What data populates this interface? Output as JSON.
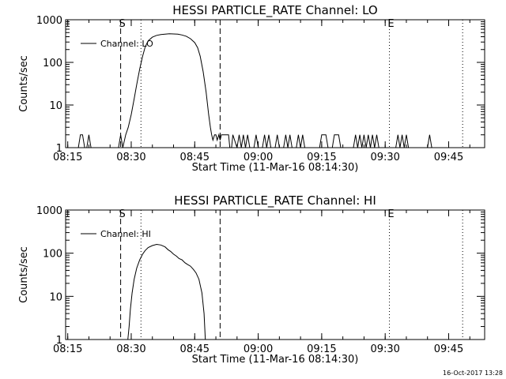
{
  "chart_data": [
    {
      "type": "line",
      "title": "HESSI PARTICLE_RATE Channel: LO",
      "xlabel": "Start Time (11-Mar-16 08:14:30)",
      "ylabel": "Counts/sec",
      "yscale": "log",
      "ylim": [
        1,
        1000
      ],
      "xlim": [
        "08:14:30",
        "09:53:30"
      ],
      "xticks": [
        "08:15",
        "08:30",
        "08:45",
        "09:00",
        "09:15",
        "09:30",
        "09:45"
      ],
      "yticks": [
        "1",
        "10",
        "100",
        "1000"
      ],
      "legend": {
        "location": "top-left",
        "entries": [
          "Channel: LO"
        ]
      },
      "markers": [
        {
          "label": "S",
          "time": "08:27.5",
          "style": "dashed"
        },
        {
          "label": "",
          "time": "08:32.3",
          "style": "dotted"
        },
        {
          "label": "",
          "time": "08:51.0",
          "style": "dashed"
        },
        {
          "label": "E",
          "time": "09:31.0",
          "style": "dotted"
        },
        {
          "label": "",
          "time": "09:48.3",
          "style": "dotted"
        }
      ],
      "series": [
        {
          "name": "Channel: LO",
          "points": [
            [
              "08:17.5",
              1
            ],
            [
              "08:18.0",
              2
            ],
            [
              "08:18.5",
              2
            ],
            [
              "08:19.0",
              1
            ],
            [
              "08:19.5",
              1
            ],
            [
              "08:20.0",
              2
            ],
            [
              "08:20.5",
              1
            ],
            [
              "08:27.0",
              1
            ],
            [
              "08:27.5",
              2
            ],
            [
              "08:28.0",
              1
            ],
            [
              "08:28.7",
              2
            ],
            [
              "08:29.3",
              3
            ],
            [
              "08:30.0",
              6
            ],
            [
              "08:30.7",
              14
            ],
            [
              "08:31.3",
              30
            ],
            [
              "08:32.0",
              70
            ],
            [
              "08:32.7",
              140
            ],
            [
              "08:33.3",
              230
            ],
            [
              "08:34.0",
              320
            ],
            [
              "08:35.0",
              390
            ],
            [
              "08:36.0",
              430
            ],
            [
              "08:37.0",
              450
            ],
            [
              "08:38.0",
              460
            ],
            [
              "08:39.0",
              470
            ],
            [
              "08:40.0",
              465
            ],
            [
              "08:41.0",
              460
            ],
            [
              "08:42.0",
              440
            ],
            [
              "08:43.0",
              410
            ],
            [
              "08:44.0",
              360
            ],
            [
              "08:45.0",
              290
            ],
            [
              "08:45.7",
              220
            ],
            [
              "08:46.3",
              140
            ],
            [
              "08:47.0",
              60
            ],
            [
              "08:47.7",
              20
            ],
            [
              "08:48.3",
              6
            ],
            [
              "08:48.7",
              3
            ],
            [
              "08:49.0",
              2
            ],
            [
              "08:49.3",
              1.5
            ],
            [
              "08:49.7",
              2
            ],
            [
              "08:50.0",
              2
            ],
            [
              "08:50.3",
              1.5
            ],
            [
              "08:50.7",
              2
            ],
            [
              "08:51.0",
              1.5
            ],
            [
              "08:51.3",
              2
            ],
            [
              "08:52.5",
              2
            ],
            [
              "08:53.0",
              2
            ],
            [
              "08:53.3",
              1
            ],
            [
              "08:53.7",
              1
            ],
            [
              "08:54.0",
              2
            ],
            [
              "08:55.0",
              1
            ],
            [
              "08:55.5",
              2
            ],
            [
              "08:56.0",
              1
            ],
            [
              "08:56.5",
              2
            ],
            [
              "08:57.0",
              1
            ],
            [
              "08:57.5",
              2
            ],
            [
              "08:58.0",
              1
            ],
            [
              "08:59.0",
              1
            ],
            [
              "08:59.5",
              2
            ],
            [
              "09:00.0",
              1
            ],
            [
              "09:01.0",
              1
            ],
            [
              "09:01.5",
              2
            ],
            [
              "09:02.0",
              1
            ],
            [
              "09:02.5",
              2
            ],
            [
              "09:03.0",
              1
            ],
            [
              "09:04.0",
              1
            ],
            [
              "09:04.5",
              2
            ],
            [
              "09:05.0",
              1
            ],
            [
              "09:06.0",
              1
            ],
            [
              "09:06.5",
              2
            ],
            [
              "09:07.0",
              1
            ],
            [
              "09:07.5",
              2
            ],
            [
              "09:08.0",
              1
            ],
            [
              "09:09.0",
              1
            ],
            [
              "09:09.5",
              2
            ],
            [
              "09:10.0",
              1
            ],
            [
              "09:10.5",
              2
            ],
            [
              "09:11.0",
              1
            ],
            [
              "09:14.5",
              1
            ],
            [
              "09:15.0",
              2
            ],
            [
              "09:16.0",
              2
            ],
            [
              "09:16.5",
              1
            ],
            [
              "09:17.5",
              1
            ],
            [
              "09:18.0",
              2
            ],
            [
              "09:19.0",
              2
            ],
            [
              "09:19.5",
              1
            ],
            [
              "09:22.5",
              1
            ],
            [
              "09:23.0",
              2
            ],
            [
              "09:23.5",
              1
            ],
            [
              "09:24.0",
              2
            ],
            [
              "09:24.5",
              1
            ],
            [
              "09:25.0",
              2
            ],
            [
              "09:25.5",
              1
            ],
            [
              "09:26.0",
              2
            ],
            [
              "09:26.5",
              1
            ],
            [
              "09:27.0",
              2
            ],
            [
              "09:27.5",
              1
            ],
            [
              "09:28.0",
              2
            ],
            [
              "09:28.5",
              1
            ],
            [
              "09:32.5",
              1
            ],
            [
              "09:33.0",
              2
            ],
            [
              "09:33.5",
              1
            ],
            [
              "09:34.0",
              2
            ],
            [
              "09:34.5",
              1
            ],
            [
              "09:35.0",
              2
            ],
            [
              "09:35.5",
              1
            ],
            [
              "09:40.0",
              1
            ],
            [
              "09:40.5",
              2
            ],
            [
              "09:41.0",
              1
            ]
          ]
        }
      ]
    },
    {
      "type": "line",
      "title": "HESSI PARTICLE_RATE Channel: HI",
      "xlabel": "Start Time (11-Mar-16 08:14:30)",
      "ylabel": "Counts/sec",
      "yscale": "log",
      "ylim": [
        1,
        1000
      ],
      "xlim": [
        "08:14:30",
        "09:53:30"
      ],
      "xticks": [
        "08:15",
        "08:30",
        "08:45",
        "09:00",
        "09:15",
        "09:30",
        "09:45"
      ],
      "yticks": [
        "1",
        "10",
        "100",
        "1000"
      ],
      "legend": {
        "location": "top-left",
        "entries": [
          "Channel: HI"
        ]
      },
      "markers": [
        {
          "label": "S",
          "time": "08:27.5",
          "style": "dashed"
        },
        {
          "label": "",
          "time": "08:32.3",
          "style": "dotted"
        },
        {
          "label": "",
          "time": "08:51.0",
          "style": "dashed"
        },
        {
          "label": "E",
          "time": "09:31.0",
          "style": "dotted"
        },
        {
          "label": "",
          "time": "09:48.3",
          "style": "dotted"
        }
      ],
      "series": [
        {
          "name": "Channel: HI",
          "points": [
            [
              "08:29.2",
              1
            ],
            [
              "08:29.5",
              2
            ],
            [
              "08:29.8",
              5
            ],
            [
              "08:30.2",
              12
            ],
            [
              "08:30.7",
              25
            ],
            [
              "08:31.3",
              45
            ],
            [
              "08:32.0",
              70
            ],
            [
              "08:32.7",
              95
            ],
            [
              "08:33.3",
              115
            ],
            [
              "08:34.0",
              135
            ],
            [
              "08:35.0",
              150
            ],
            [
              "08:36.0",
              160
            ],
            [
              "08:37.0",
              155
            ],
            [
              "08:38.0",
              140
            ],
            [
              "08:38.7",
              120
            ],
            [
              "08:39.3",
              110
            ],
            [
              "08:40.0",
              95
            ],
            [
              "08:40.7",
              85
            ],
            [
              "08:41.3",
              75
            ],
            [
              "08:42.0",
              70
            ],
            [
              "08:42.7",
              60
            ],
            [
              "08:43.3",
              55
            ],
            [
              "08:44.0",
              50
            ],
            [
              "08:44.7",
              42
            ],
            [
              "08:45.3",
              35
            ],
            [
              "08:46.0",
              25
            ],
            [
              "08:46.7",
              12
            ],
            [
              "08:47.2",
              4
            ],
            [
              "08:47.5",
              1
            ]
          ]
        }
      ]
    }
  ],
  "footer": {
    "timestamp": "16-Oct-2017 13:28"
  }
}
